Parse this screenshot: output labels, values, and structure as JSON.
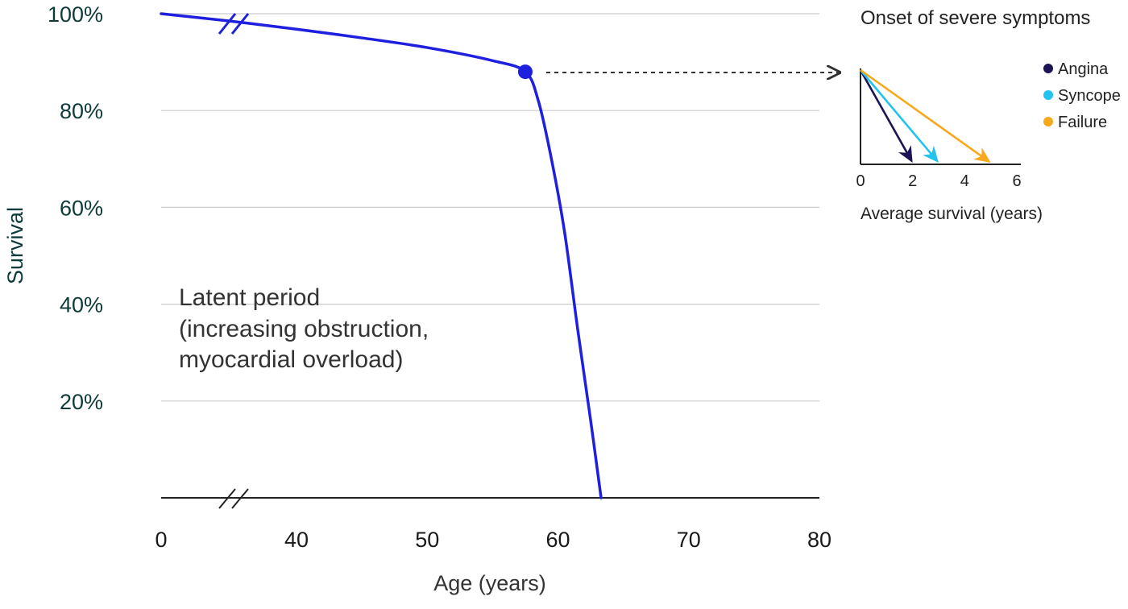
{
  "colors": {
    "curve": "#1f1fe0",
    "grid": "#cccccc",
    "axis": "#222222",
    "arrow": "#333333",
    "angina": "#1c1454",
    "syncope": "#22c3ef",
    "failure": "#f7a81b"
  },
  "chart_data": [
    {
      "type": "line",
      "title": "",
      "xlabel": "Age (years)",
      "ylabel": "Survival",
      "x_ticks": [
        "0",
        "40",
        "50",
        "60",
        "70",
        "80"
      ],
      "y_ticks": [
        "20%",
        "40%",
        "60%",
        "80%",
        "100%"
      ],
      "xlim": [
        30,
        80
      ],
      "ylim": [
        0,
        100
      ],
      "axis_break": "x-axis between 0 and 40",
      "grid": "horizontal",
      "series": [
        {
          "x": [
            30,
            35,
            40,
            45,
            50,
            55,
            57.5,
            58.5,
            59.5,
            60.5,
            61.5,
            62.5,
            63.3
          ],
          "y": [
            100,
            98.5,
            96.8,
            95,
            93,
            90.3,
            88,
            82,
            70,
            55,
            35,
            16,
            0
          ]
        }
      ],
      "marker": {
        "x": 57.5,
        "y": 88
      },
      "annotation": {
        "lines": [
          "Latent period",
          "(increasing obstruction,",
          "myocardial overload)"
        ]
      }
    },
    {
      "type": "bar",
      "title": "Onset of severe symptoms",
      "xlabel": "Average survival (years)",
      "x_ticks": [
        "0",
        "2",
        "4",
        "6"
      ],
      "xlim": [
        0,
        6
      ],
      "legend": "top-right",
      "series": [
        {
          "name": "Angina",
          "value": 2,
          "color": "#1c1454"
        },
        {
          "name": "Syncope",
          "value": 3,
          "color": "#22c3ef"
        },
        {
          "name": "Failure",
          "value": 5,
          "color": "#f7a81b"
        }
      ]
    }
  ]
}
